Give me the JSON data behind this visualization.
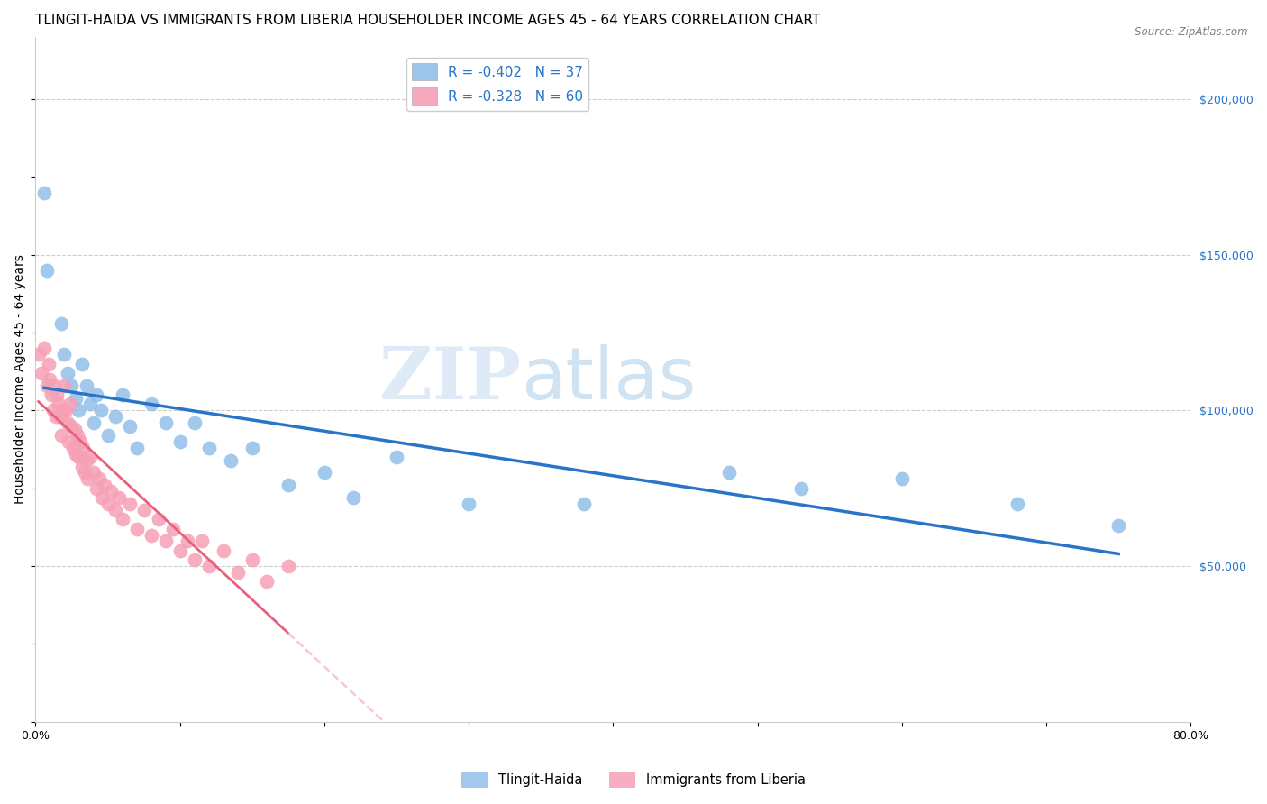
{
  "title": "TLINGIT-HAIDA VS IMMIGRANTS FROM LIBERIA HOUSEHOLDER INCOME AGES 45 - 64 YEARS CORRELATION CHART",
  "source": "Source: ZipAtlas.com",
  "ylabel": "Householder Income Ages 45 - 64 years",
  "watermark_zip": "ZIP",
  "watermark_atlas": "atlas",
  "xlim": [
    0.0,
    0.8
  ],
  "ylim": [
    0,
    220000
  ],
  "xticks": [
    0.0,
    0.1,
    0.2,
    0.3,
    0.4,
    0.5,
    0.6,
    0.7,
    0.8
  ],
  "xticklabels": [
    "0.0%",
    "",
    "",
    "",
    "",
    "",
    "",
    "",
    "80.0%"
  ],
  "yticks_right": [
    50000,
    100000,
    150000,
    200000
  ],
  "ytick_labels_right": [
    "$50,000",
    "$100,000",
    "$150,000",
    "$200,000"
  ],
  "series1_label": "Tlingit-Haida",
  "series2_label": "Immigrants from Liberia",
  "series1_color": "#92bfe8",
  "series2_color": "#f5a0b5",
  "series1_line_color": "#2874c8",
  "series2_line_color": "#e8607a",
  "series2_dash_color": "#f5b8c8",
  "background_color": "#ffffff",
  "grid_color": "#cccccc",
  "title_fontsize": 11,
  "axis_label_fontsize": 10,
  "tick_fontsize": 9,
  "legend_label1": "R = -0.402   N = 37",
  "legend_label2": "R = -0.328   N = 60",
  "series1_x": [
    0.006,
    0.008,
    0.018,
    0.02,
    0.022,
    0.025,
    0.028,
    0.03,
    0.032,
    0.035,
    0.038,
    0.04,
    0.042,
    0.045,
    0.05,
    0.055,
    0.06,
    0.065,
    0.07,
    0.08,
    0.09,
    0.1,
    0.11,
    0.12,
    0.135,
    0.15,
    0.175,
    0.2,
    0.22,
    0.25,
    0.3,
    0.38,
    0.48,
    0.53,
    0.6,
    0.68,
    0.75
  ],
  "series1_y": [
    170000,
    145000,
    128000,
    118000,
    112000,
    108000,
    104000,
    100000,
    115000,
    108000,
    102000,
    96000,
    105000,
    100000,
    92000,
    98000,
    105000,
    95000,
    88000,
    102000,
    96000,
    90000,
    96000,
    88000,
    84000,
    88000,
    76000,
    80000,
    72000,
    85000,
    70000,
    70000,
    80000,
    75000,
    78000,
    70000,
    63000
  ],
  "series2_x": [
    0.002,
    0.004,
    0.006,
    0.008,
    0.009,
    0.01,
    0.011,
    0.012,
    0.013,
    0.014,
    0.015,
    0.016,
    0.017,
    0.018,
    0.019,
    0.02,
    0.021,
    0.022,
    0.023,
    0.024,
    0.025,
    0.026,
    0.027,
    0.028,
    0.029,
    0.03,
    0.031,
    0.032,
    0.033,
    0.034,
    0.035,
    0.036,
    0.038,
    0.04,
    0.042,
    0.044,
    0.046,
    0.048,
    0.05,
    0.052,
    0.055,
    0.058,
    0.06,
    0.065,
    0.07,
    0.075,
    0.08,
    0.085,
    0.09,
    0.095,
    0.1,
    0.105,
    0.11,
    0.115,
    0.12,
    0.13,
    0.14,
    0.15,
    0.16,
    0.175
  ],
  "series2_y": [
    118000,
    112000,
    120000,
    108000,
    115000,
    110000,
    105000,
    100000,
    108000,
    98000,
    105000,
    102000,
    98000,
    92000,
    100000,
    108000,
    100000,
    96000,
    90000,
    102000,
    95000,
    88000,
    94000,
    86000,
    92000,
    85000,
    90000,
    82000,
    88000,
    80000,
    84000,
    78000,
    85000,
    80000,
    75000,
    78000,
    72000,
    76000,
    70000,
    74000,
    68000,
    72000,
    65000,
    70000,
    62000,
    68000,
    60000,
    65000,
    58000,
    62000,
    55000,
    58000,
    52000,
    58000,
    50000,
    55000,
    48000,
    52000,
    45000,
    50000
  ]
}
